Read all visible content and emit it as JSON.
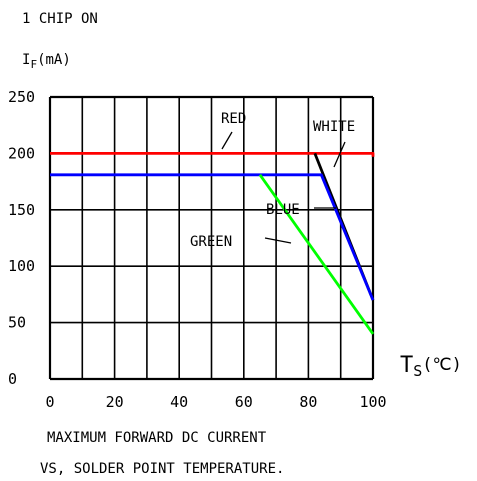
{
  "header": {
    "chip_label": "1 CHIP ON",
    "y_unit_prefix": "I",
    "y_unit_sub": "F",
    "y_unit_suffix": "(mA)"
  },
  "x_unit": {
    "prefix": "T",
    "sub": "S",
    "suffix": "(℃)"
  },
  "caption": {
    "line1": "MAXIMUM FORWARD DC CURRENT",
    "line2": "VS, SOLDER POINT TEMPERATURE."
  },
  "chart_data": {
    "type": "line",
    "xlim": [
      0,
      100
    ],
    "ylim": [
      0,
      250
    ],
    "x_ticks": [
      0,
      20,
      40,
      60,
      80,
      100
    ],
    "y_ticks": [
      0,
      50,
      100,
      150,
      200,
      250
    ],
    "grid": true,
    "series": [
      {
        "name": "RED",
        "color": "#ff0000",
        "x": [
          0,
          100,
          100
        ],
        "y": [
          200,
          200,
          197
        ]
      },
      {
        "name": "WHITE",
        "color": "#000000",
        "x": [
          82,
          100
        ],
        "y": [
          200,
          70
        ]
      },
      {
        "name": "BLUE",
        "color": "#0000ff",
        "x": [
          0,
          84,
          100
        ],
        "y": [
          181,
          181,
          70
        ]
      },
      {
        "name": "GREEN",
        "color": "#00ff00",
        "x": [
          65,
          100
        ],
        "y": [
          181,
          40
        ]
      }
    ]
  }
}
